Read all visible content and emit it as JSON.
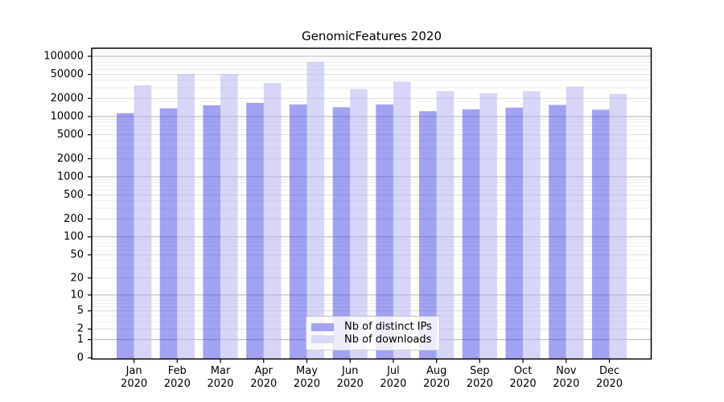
{
  "title": "GenomicFeatures 2020",
  "legend": {
    "items": [
      {
        "label": "Nb of distinct IPs",
        "color": "#a2a2f0"
      },
      {
        "label": "Nb of downloads",
        "color": "#d9d9f7"
      }
    ]
  },
  "colors": {
    "bar_ips": "rgba(70,70,230,0.5)",
    "bar_downloads": "rgba(180,180,240,0.55)",
    "grid_decade": "#b2b2b2",
    "grid_major": "#dcdcdc",
    "grid_minor": "#ececec",
    "axis": "#000000"
  },
  "chart_data": {
    "type": "bar",
    "title": "GenomicFeatures 2020",
    "categories": [
      "Jan 2020",
      "Feb 2020",
      "Mar 2020",
      "Apr 2020",
      "May 2020",
      "Jun 2020",
      "Jul 2020",
      "Aug 2020",
      "Sep 2020",
      "Oct 2020",
      "Nov 2020",
      "Dec 2020"
    ],
    "series": [
      {
        "name": "Nb of distinct IPs",
        "values": [
          11400,
          13700,
          15400,
          16900,
          15900,
          14300,
          15900,
          12300,
          13200,
          14100,
          15600,
          13000
        ]
      },
      {
        "name": "Nb of downloads",
        "values": [
          33000,
          50500,
          50500,
          36000,
          81000,
          28600,
          38000,
          26500,
          24400,
          26400,
          31500,
          23800
        ]
      }
    ],
    "xlabel": "",
    "ylabel": "",
    "y_scale": "log10(1+value)",
    "y_ticks": [
      0,
      1,
      2,
      5,
      10,
      20,
      50,
      100,
      200,
      500,
      1000,
      2000,
      5000,
      10000,
      20000,
      50000,
      100000
    ],
    "ylim": [
      0,
      140000
    ],
    "grid": true,
    "legend_position": "lower center"
  }
}
